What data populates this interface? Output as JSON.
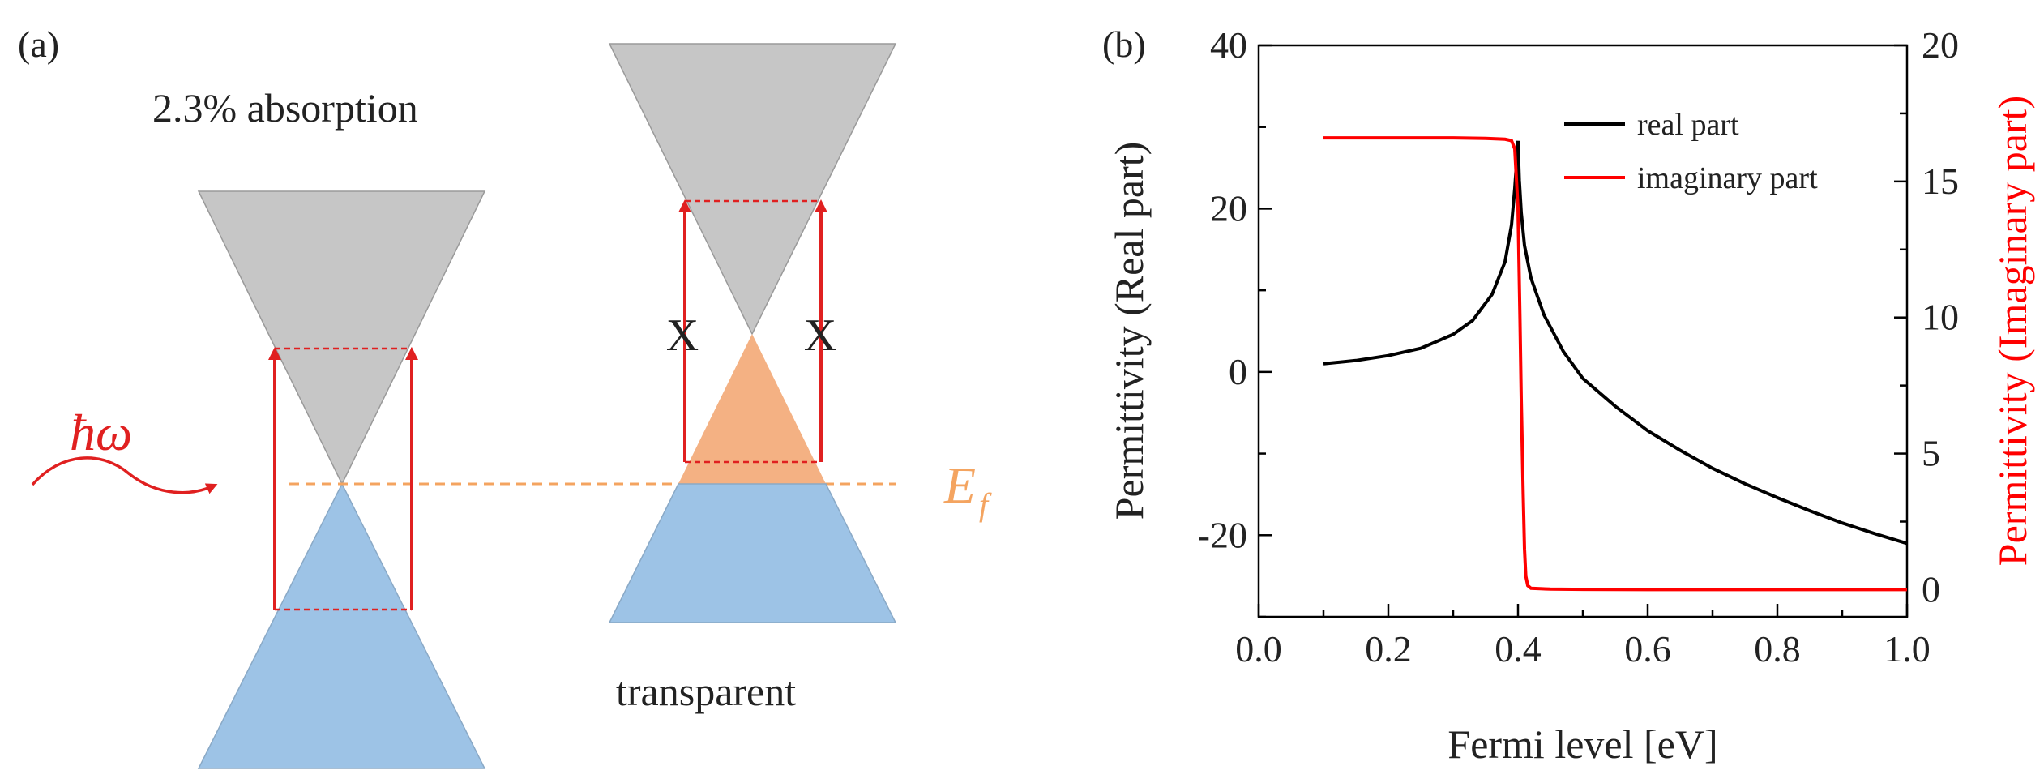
{
  "panel_a": {
    "label": "(a)",
    "cone_left_caption": "2.3% absorption",
    "cone_right_caption": "transparent",
    "photon_label": "ħω",
    "fermi_label": "E",
    "fermi_subscript": "f",
    "blocked_mark": "X",
    "colors": {
      "conduction_band": "#c6c6c6",
      "valence_band": "#9dc3e6",
      "doped_region": "#f4b183",
      "transition_arrow": "#e02020",
      "fermi_line": "#f4a460"
    }
  },
  "panel_b": {
    "label": "(b)"
  },
  "chart_data": {
    "type": "line",
    "xlabel": "Fermi level [eV]",
    "ylabel": "Permittivity (Real part)",
    "ylabel_right": "Permittivity (Imaginary part)",
    "xlim": [
      0.0,
      1.0
    ],
    "ylim": [
      -30,
      40
    ],
    "ylim_right": [
      -1,
      20
    ],
    "x_ticks": [
      "0.0",
      "0.2",
      "0.4",
      "0.6",
      "0.8",
      "1.0"
    ],
    "y_ticks": [
      "-20",
      "0",
      "20",
      "40"
    ],
    "y_ticks_right": [
      "0",
      "5",
      "10",
      "15",
      "20"
    ],
    "legend_position": "top-right",
    "series": [
      {
        "name": "real part",
        "axis": "left",
        "color": "#000000",
        "x": [
          0.1,
          0.15,
          0.2,
          0.25,
          0.3,
          0.33,
          0.36,
          0.38,
          0.39,
          0.395,
          0.4,
          0.402,
          0.405,
          0.41,
          0.42,
          0.44,
          0.47,
          0.5,
          0.55,
          0.6,
          0.65,
          0.7,
          0.75,
          0.8,
          0.85,
          0.9,
          0.95,
          1.0
        ],
        "values": [
          1.0,
          1.4,
          2.0,
          2.9,
          4.6,
          6.3,
          9.5,
          13.5,
          18.0,
          22.5,
          28.3,
          23.5,
          19.5,
          15.5,
          11.5,
          7.0,
          2.5,
          -0.8,
          -4.2,
          -7.2,
          -9.6,
          -11.8,
          -13.7,
          -15.4,
          -17.0,
          -18.5,
          -19.8,
          -21.0
        ]
      },
      {
        "name": "imaginary part",
        "axis": "right",
        "color": "#ff0000",
        "x": [
          0.1,
          0.2,
          0.3,
          0.35,
          0.38,
          0.39,
          0.395,
          0.4,
          0.403,
          0.405,
          0.408,
          0.41,
          0.412,
          0.415,
          0.42,
          0.45,
          0.5,
          0.6,
          0.8,
          1.0
        ],
        "values": [
          16.6,
          16.6,
          16.6,
          16.58,
          16.55,
          16.5,
          16.2,
          14.0,
          10.0,
          7.0,
          3.5,
          1.5,
          0.5,
          0.15,
          0.05,
          0.02,
          0.01,
          0.0,
          0.0,
          0.0
        ]
      }
    ]
  }
}
